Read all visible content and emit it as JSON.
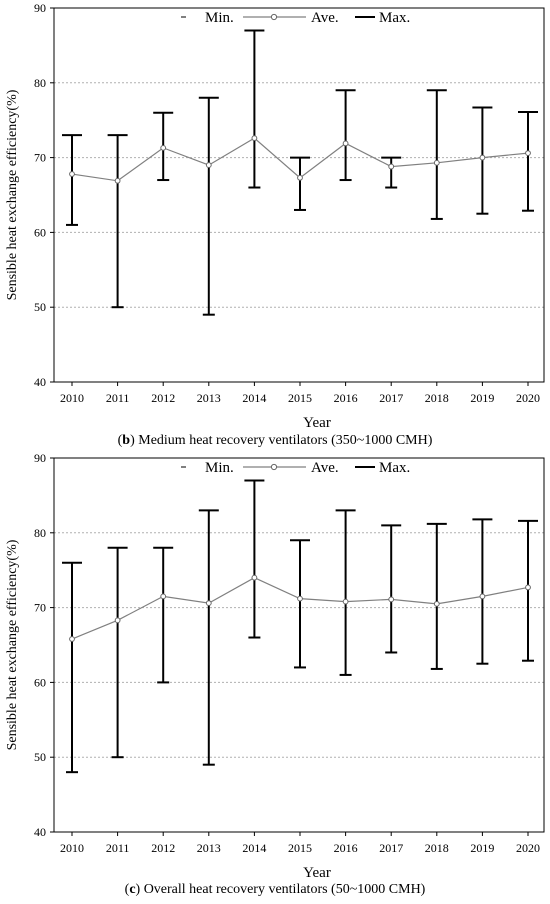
{
  "chart_data": [
    {
      "type": "errorbar-line",
      "caption_letter": "b",
      "caption_text": " Medium heat recovery ventilators (350~1000 CMH)",
      "xlabel": "Year",
      "ylabel": "Sensible heat exchange efficiency(%)",
      "ylim": [
        40,
        90
      ],
      "yticks": [
        40,
        50,
        60,
        70,
        80,
        90
      ],
      "grid": "horizontal dotted",
      "legend": {
        "position": "top",
        "labels": [
          "Min.",
          "Ave.",
          "Max."
        ]
      },
      "categories": [
        "2010",
        "2011",
        "2012",
        "2013",
        "2014",
        "2015",
        "2016",
        "2017",
        "2018",
        "2019",
        "2020"
      ],
      "series": [
        {
          "name": "Min.",
          "values": [
            61,
            50,
            67,
            49,
            66,
            63,
            67,
            66,
            61.8,
            62.5,
            62.9
          ]
        },
        {
          "name": "Ave.",
          "values": [
            67.8,
            66.9,
            71.3,
            69.0,
            72.6,
            67.3,
            71.9,
            68.8,
            69.3,
            70.0,
            70.6
          ]
        },
        {
          "name": "Max.",
          "values": [
            73,
            73,
            76,
            78,
            87,
            70,
            79,
            70,
            79,
            76.7,
            76.1
          ]
        }
      ]
    },
    {
      "type": "errorbar-line",
      "caption_letter": "c",
      "caption_text": " Overall heat recovery ventilators (50~1000 CMH)",
      "xlabel": "Year",
      "ylabel": "Sensible heat exchange efficiency(%)",
      "ylim": [
        40,
        90
      ],
      "yticks": [
        40,
        50,
        60,
        70,
        80,
        90
      ],
      "grid": "horizontal dotted",
      "legend": {
        "position": "top",
        "labels": [
          "Min.",
          "Ave.",
          "Max."
        ]
      },
      "categories": [
        "2010",
        "2011",
        "2012",
        "2013",
        "2014",
        "2015",
        "2016",
        "2017",
        "2018",
        "2019",
        "2020"
      ],
      "series": [
        {
          "name": "Min.",
          "values": [
            48,
            50,
            60,
            49,
            66,
            62,
            61,
            64,
            61.8,
            62.5,
            62.9
          ]
        },
        {
          "name": "Ave.",
          "values": [
            65.8,
            68.3,
            71.5,
            70.6,
            74.0,
            71.2,
            70.8,
            71.1,
            70.5,
            71.5,
            72.7
          ]
        },
        {
          "name": "Max.",
          "values": [
            76,
            78,
            78,
            83,
            87,
            79,
            83,
            81,
            81.2,
            81.8,
            81.6
          ]
        }
      ]
    }
  ],
  "colors": {
    "line": "#808080",
    "bars": "#000000",
    "grid": "#b0b0b0"
  }
}
